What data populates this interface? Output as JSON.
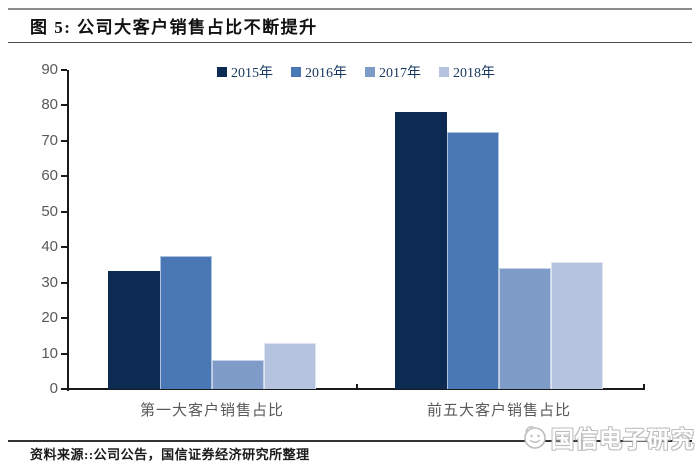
{
  "figure": {
    "title": "图 5: 公司大客户销售占比不断提升",
    "source": "资料来源::公司公告，国信证券经济研究所整理",
    "watermark": "国信电子研究"
  },
  "chart_data": {
    "type": "bar",
    "title": "图 5: 公司大客户销售占比不断提升",
    "categories": [
      "第一大客户销售占比",
      "前五大客户销售占比"
    ],
    "series": [
      {
        "name": "2015年",
        "color": "#0d2b52",
        "values": [
          33.3,
          78.1
        ]
      },
      {
        "name": "2016年",
        "color": "#4a78b5",
        "values": [
          37.5,
          72.4
        ]
      },
      {
        "name": "2017年",
        "color": "#7f9cc9",
        "values": [
          8.2,
          34.1
        ]
      },
      {
        "name": "2018年",
        "color": "#b6c3de",
        "values": [
          13.1,
          35.9
        ]
      }
    ],
    "xlabel": "",
    "ylabel": "",
    "ylim": [
      0,
      90
    ],
    "yticks": [
      0,
      10,
      20,
      30,
      40,
      50,
      60,
      70,
      80,
      90
    ],
    "grid": false,
    "legend_position": "top"
  }
}
